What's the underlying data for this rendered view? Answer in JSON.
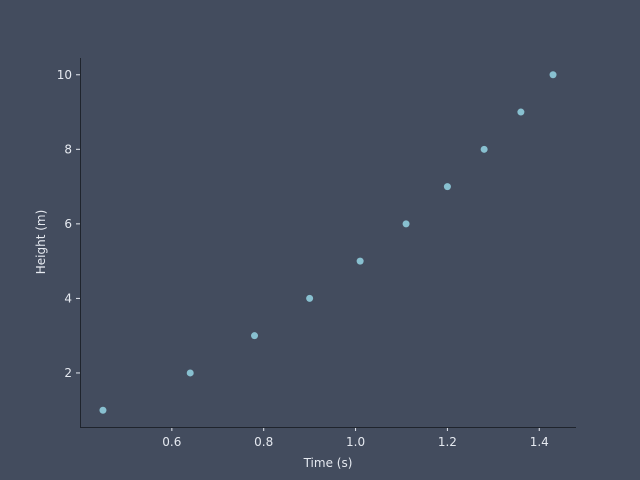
{
  "chart_data": {
    "type": "scatter",
    "title": "",
    "xlabel": "Time (s)",
    "ylabel": "Height (m)",
    "xlim": [
      0.4,
      1.48
    ],
    "ylim": [
      0.55,
      10.45
    ],
    "xticks": [
      "0.6",
      "0.8",
      "1.0",
      "1.2",
      "1.4"
    ],
    "yticks": [
      "2",
      "4",
      "6",
      "8",
      "10"
    ],
    "grid": false,
    "series": [
      {
        "x": [
          0.45,
          0.64,
          0.78,
          0.9,
          1.01,
          1.11,
          1.2,
          1.28,
          1.36,
          1.43
        ],
        "y": [
          1,
          2,
          3,
          4,
          5,
          6,
          7,
          8,
          9,
          10
        ]
      }
    ],
    "colors": {
      "background": "#434c5e",
      "marker": "#88c0d0",
      "axis": "#1f242d",
      "text": "#e5e9f0"
    }
  }
}
